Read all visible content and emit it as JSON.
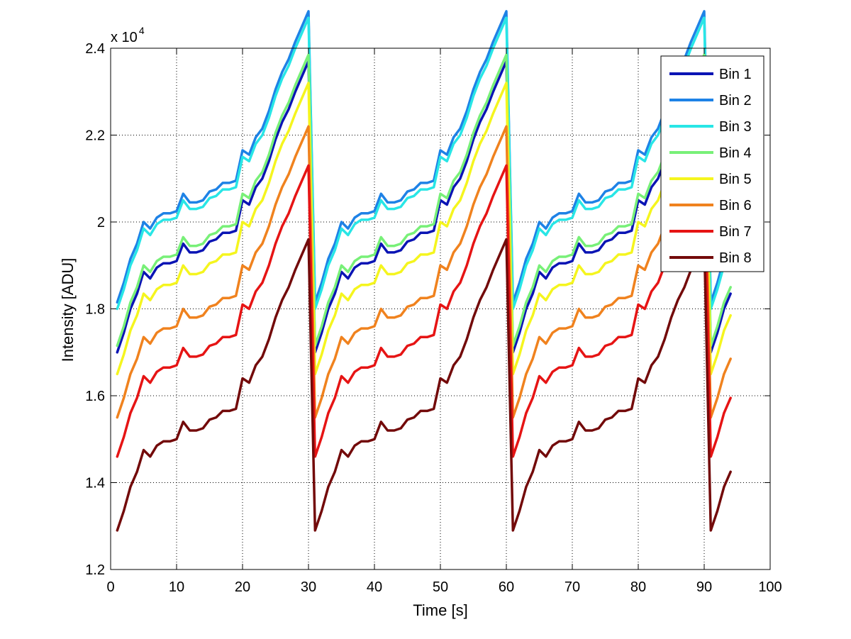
{
  "chart_data": {
    "type": "line",
    "title": "",
    "xlabel": "Time [s]",
    "ylabel": "Intensity [ADU]",
    "xlim": [
      0,
      100
    ],
    "ylim": [
      12000,
      24000
    ],
    "xticks": [
      0,
      10,
      20,
      30,
      40,
      50,
      60,
      70,
      80,
      90,
      100
    ],
    "xtick_labels": [
      "0",
      "10",
      "20",
      "30",
      "40",
      "50",
      "60",
      "70",
      "80",
      "90",
      "100"
    ],
    "yticks": [
      12000,
      14000,
      16000,
      18000,
      20000,
      22000,
      24000
    ],
    "ytick_labels": [
      "1.2",
      "1.4",
      "1.6",
      "1.8",
      "2",
      "2.2",
      "2.4"
    ],
    "y_exponent_base": "x 10",
    "y_exponent_power": "4",
    "grid": true,
    "legend_position": "top-right",
    "cycle_template": {
      "t": [
        1,
        2,
        3,
        4,
        5,
        6,
        7,
        8,
        9,
        10,
        11,
        12,
        13,
        14,
        15,
        16,
        17,
        18,
        19,
        20,
        21,
        22,
        23,
        24,
        25,
        26,
        27,
        28,
        29,
        30
      ],
      "offset": [
        0,
        450,
        1000,
        1350,
        1850,
        1700,
        1950,
        2050,
        2050,
        2100,
        2500,
        2300,
        2300,
        2350,
        2550,
        2600,
        2750,
        2750,
        2800,
        3500,
        3400,
        3800,
        4000,
        4400,
        4900,
        5300,
        5600,
        6000,
        6350,
        6700
      ]
    },
    "cycle_starts": [
      0,
      30,
      60
    ],
    "last_cycle_length": 4,
    "series": [
      {
        "name": "Bin 1",
        "base": 17000,
        "color": "#0a14b4"
      },
      {
        "name": "Bin 2",
        "base": 18150,
        "color": "#1e82e6"
      },
      {
        "name": "Bin 3",
        "base": 18000,
        "color": "#28e6e6"
      },
      {
        "name": "Bin 4",
        "base": 17150,
        "color": "#78f078"
      },
      {
        "name": "Bin 5",
        "base": 16500,
        "color": "#f5f51e"
      },
      {
        "name": "Bin 6",
        "base": 15500,
        "color": "#f0821e"
      },
      {
        "name": "Bin 7",
        "base": 14600,
        "color": "#e61414"
      },
      {
        "name": "Bin 8",
        "base": 12900,
        "color": "#730a0a"
      }
    ]
  }
}
